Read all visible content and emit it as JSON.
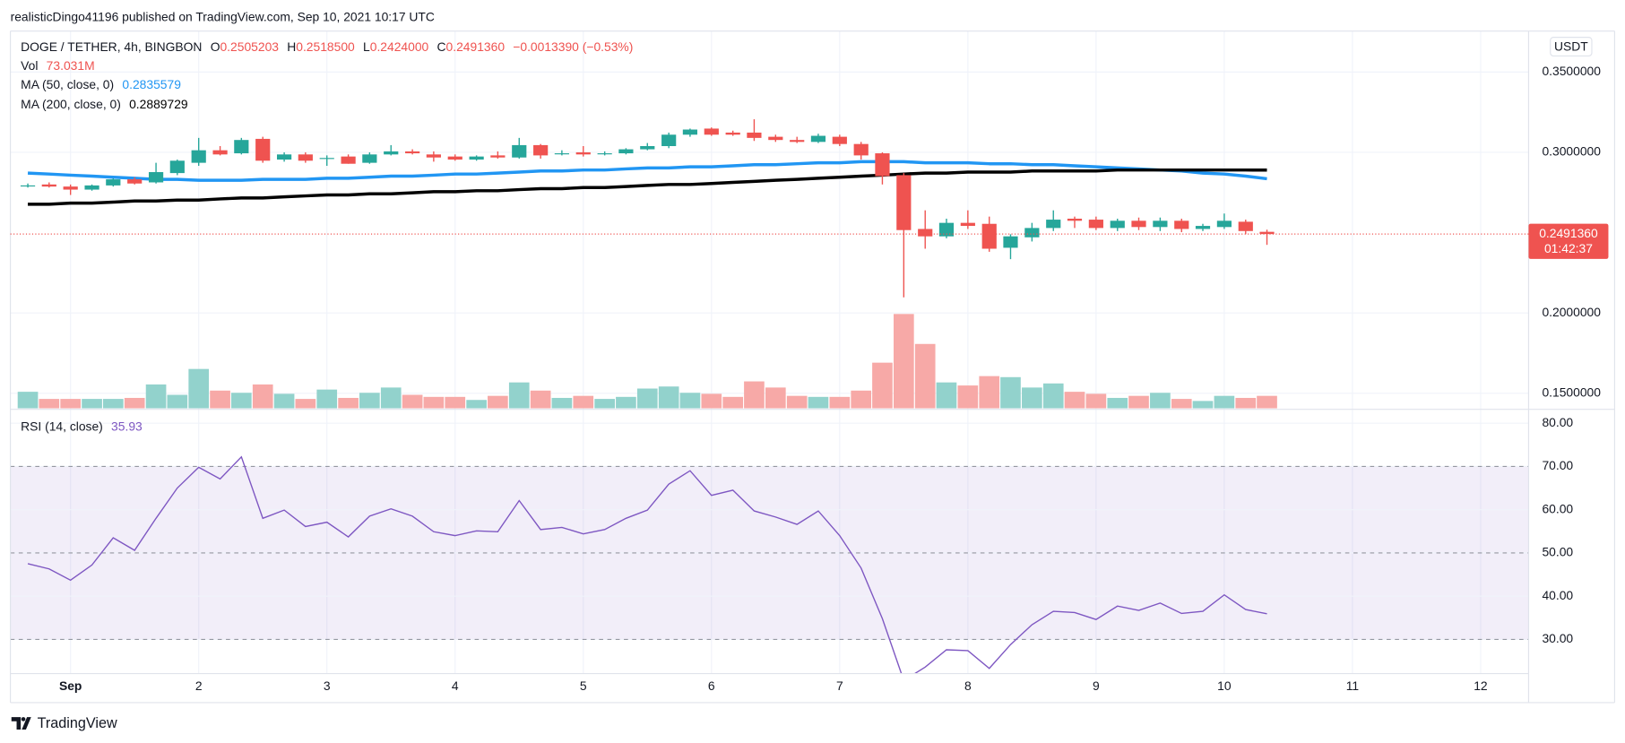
{
  "header": "realisticDingo41196 published on TradingView.com, Sep 10, 2021 10:17 UTC",
  "footer": "TradingView",
  "chart_data": [
    {
      "type": "candlestick",
      "title": "DOGE / TETHER, 4h, BINGBON",
      "currency": "USDT",
      "ohlc_legend": [
        {
          "key": "O",
          "value": "0.2505203"
        },
        {
          "key": "H",
          "value": "0.2518500"
        },
        {
          "key": "L",
          "value": "0.2424000"
        },
        {
          "key": "C",
          "value": "0.2491360"
        }
      ],
      "change": "−0.0013390 (−0.53%)",
      "up_color": "#26a69a",
      "down_color": "#ef5350",
      "last_label": "0.2491360",
      "countdown": "01:42:37",
      "xlim": [
        0.531,
        12.374
      ],
      "xticks": [
        {
          "value": 1,
          "label": "Sep"
        },
        2,
        3,
        4,
        5,
        6,
        7,
        8,
        9,
        10,
        11,
        12
      ],
      "ylim": [
        0.14,
        0.3755
      ],
      "yticks": [
        {
          "value": 0.35,
          "label": "0.3500000"
        },
        {
          "value": 0.3,
          "label": "0.3000000"
        },
        {
          "value": 0.2,
          "label": "0.2000000"
        },
        {
          "value": 0.15,
          "label": "0.1500000"
        }
      ],
      "grid": true,
      "x": [
        0.667,
        0.833,
        1,
        1.167,
        1.333,
        1.5,
        1.667,
        1.833,
        2,
        2.167,
        2.333,
        2.5,
        2.667,
        2.833,
        3,
        3.167,
        3.333,
        3.5,
        3.667,
        3.833,
        4,
        4.167,
        4.333,
        4.5,
        4.667,
        4.833,
        5,
        5.167,
        5.333,
        5.5,
        5.667,
        5.833,
        6,
        6.167,
        6.333,
        6.5,
        6.667,
        6.833,
        7,
        7.167,
        7.333,
        7.5,
        7.667,
        7.833,
        8,
        8.167,
        8.333,
        8.5,
        8.667,
        8.833,
        9,
        9.167,
        9.333,
        9.5,
        9.667,
        9.833,
        10,
        10.167,
        10.333
      ],
      "open": [
        0.279,
        0.28,
        0.2787,
        0.2768,
        0.2794,
        0.2832,
        0.2813,
        0.2871,
        0.2935,
        0.3013,
        0.2994,
        0.3084,
        0.2955,
        0.2987,
        0.2961,
        0.2974,
        0.2935,
        0.2987,
        0.3006,
        0.2987,
        0.2974,
        0.2955,
        0.2981,
        0.2968,
        0.3045,
        0.299,
        0.3,
        0.299,
        0.2994,
        0.3019,
        0.3039,
        0.311,
        0.3148,
        0.3123,
        0.3123,
        0.3097,
        0.3077,
        0.3065,
        0.3097,
        0.3052,
        0.2994,
        0.2858,
        0.2523,
        0.2477,
        0.2561,
        0.2555,
        0.2406,
        0.2471,
        0.2529,
        0.2587,
        0.2581,
        0.2529,
        0.2574,
        0.2535,
        0.2574,
        0.2523,
        0.2535,
        0.2568,
        0.2505203
      ],
      "high": [
        0.2806,
        0.2813,
        0.28,
        0.28,
        0.2838,
        0.2845,
        0.2935,
        0.2955,
        0.309,
        0.3039,
        0.309,
        0.3097,
        0.3,
        0.3,
        0.2981,
        0.2987,
        0.3,
        0.3045,
        0.3019,
        0.3006,
        0.2987,
        0.2981,
        0.3006,
        0.309,
        0.3052,
        0.3013,
        0.3039,
        0.3006,
        0.3026,
        0.3058,
        0.3123,
        0.3148,
        0.3155,
        0.3135,
        0.3206,
        0.311,
        0.3097,
        0.3116,
        0.311,
        0.3065,
        0.3,
        0.2871,
        0.2639,
        0.2587,
        0.2639,
        0.26,
        0.249,
        0.2561,
        0.2639,
        0.26,
        0.26,
        0.2587,
        0.2594,
        0.2594,
        0.2587,
        0.2555,
        0.2619,
        0.2581,
        0.25185
      ],
      "low": [
        0.2781,
        0.2781,
        0.2735,
        0.2761,
        0.2787,
        0.28,
        0.2806,
        0.2858,
        0.2916,
        0.2981,
        0.2987,
        0.2935,
        0.2942,
        0.2935,
        0.2916,
        0.2929,
        0.2929,
        0.2981,
        0.2987,
        0.2942,
        0.2948,
        0.2948,
        0.2961,
        0.2961,
        0.2961,
        0.2981,
        0.2974,
        0.2981,
        0.2987,
        0.3013,
        0.3026,
        0.3097,
        0.3103,
        0.3103,
        0.3071,
        0.3065,
        0.3058,
        0.3058,
        0.3039,
        0.2955,
        0.28,
        0.2097,
        0.24,
        0.2465,
        0.2523,
        0.2381,
        0.2335,
        0.2445,
        0.251,
        0.2529,
        0.2516,
        0.251,
        0.2516,
        0.251,
        0.2503,
        0.251,
        0.2523,
        0.249,
        0.2424
      ],
      "close": [
        0.2794,
        0.2787,
        0.2768,
        0.2794,
        0.2832,
        0.2806,
        0.2877,
        0.2948,
        0.3013,
        0.2987,
        0.3077,
        0.2948,
        0.2987,
        0.2948,
        0.2965,
        0.2929,
        0.2987,
        0.3006,
        0.2994,
        0.2968,
        0.2955,
        0.2974,
        0.2968,
        0.3045,
        0.2981,
        0.2994,
        0.2987,
        0.2994,
        0.3019,
        0.3039,
        0.311,
        0.3142,
        0.311,
        0.311,
        0.309,
        0.3077,
        0.3065,
        0.3103,
        0.3052,
        0.2981,
        0.2852,
        0.2516,
        0.2477,
        0.2561,
        0.2542,
        0.24,
        0.2477,
        0.2529,
        0.2581,
        0.2574,
        0.2529,
        0.2574,
        0.2535,
        0.2574,
        0.2523,
        0.2542,
        0.2574,
        0.251,
        0.249136
      ],
      "series": [
        {
          "name": "MA (50, close, 0)",
          "color": "#2196f3",
          "last_label": "0.2835579",
          "values": [
            0.2871,
            0.2865,
            0.2858,
            0.2852,
            0.2845,
            0.2839,
            0.2832,
            0.2832,
            0.2826,
            0.2826,
            0.2826,
            0.2832,
            0.2832,
            0.2832,
            0.2839,
            0.2839,
            0.2845,
            0.2852,
            0.2852,
            0.2858,
            0.2865,
            0.2865,
            0.2871,
            0.2877,
            0.2884,
            0.2884,
            0.289,
            0.289,
            0.2897,
            0.2903,
            0.2903,
            0.291,
            0.291,
            0.2916,
            0.2923,
            0.2923,
            0.2929,
            0.2935,
            0.2935,
            0.2942,
            0.2942,
            0.2942,
            0.2935,
            0.2935,
            0.2935,
            0.2929,
            0.2929,
            0.2923,
            0.2923,
            0.2916,
            0.291,
            0.2903,
            0.2897,
            0.289,
            0.2884,
            0.2871,
            0.2865,
            0.2852,
            0.2835579
          ]
        },
        {
          "name": "MA (200, close, 0)",
          "color": "#000000",
          "last_label": "0.2889729",
          "values": [
            0.2677,
            0.2677,
            0.2684,
            0.2684,
            0.269,
            0.2697,
            0.2697,
            0.2703,
            0.2703,
            0.271,
            0.2716,
            0.2716,
            0.2723,
            0.2729,
            0.2735,
            0.2735,
            0.2742,
            0.2742,
            0.2748,
            0.2755,
            0.2755,
            0.2761,
            0.2761,
            0.2768,
            0.2774,
            0.2774,
            0.2781,
            0.2781,
            0.2787,
            0.2794,
            0.28,
            0.28,
            0.2806,
            0.2813,
            0.2819,
            0.2826,
            0.2832,
            0.2839,
            0.2845,
            0.2852,
            0.2858,
            0.2865,
            0.2871,
            0.2871,
            0.2877,
            0.2877,
            0.2877,
            0.2884,
            0.2884,
            0.2884,
            0.2884,
            0.289,
            0.289,
            0.289,
            0.289,
            0.289,
            0.289,
            0.289,
            0.2889729
          ]
        }
      ]
    },
    {
      "type": "bar",
      "name": "Vol",
      "last_label": "73.031M",
      "up_color": "#92d2cc",
      "down_color": "#f7a9a7",
      "values": [
        97,
        55,
        55,
        55,
        55,
        61,
        140,
        79,
        231,
        104,
        91,
        140,
        85,
        55,
        110,
        61,
        91,
        122,
        79,
        67,
        67,
        49,
        73,
        152,
        104,
        61,
        73,
        55,
        67,
        116,
        128,
        91,
        85,
        67,
        158,
        122,
        73,
        67,
        67,
        104,
        268,
        554,
        378,
        152,
        134,
        189,
        183,
        122,
        146,
        97,
        85,
        61,
        73,
        91,
        55,
        43,
        73,
        61,
        73.031
      ]
    },
    {
      "type": "line",
      "name": "RSI (14, close)",
      "last_label": "35.93",
      "color": "#7e57c2",
      "band_color": "rgba(126,87,194,0.1)",
      "levels": [
        30,
        50,
        70
      ],
      "ylim": [
        22.1,
        83.2
      ],
      "yticks": [
        {
          "value": 80,
          "label": "80.00"
        },
        {
          "value": 70,
          "label": "70.00"
        },
        {
          "value": 60,
          "label": "60.00"
        },
        {
          "value": 50,
          "label": "50.00"
        },
        {
          "value": 40,
          "label": "40.00"
        },
        {
          "value": 30,
          "label": "30.00"
        }
      ],
      "values": [
        47.5,
        46.3,
        43.7,
        47.2,
        53.5,
        50.6,
        58.0,
        65.0,
        69.8,
        67.1,
        72.2,
        58.0,
        59.9,
        56.1,
        57.1,
        53.7,
        58.5,
        60.2,
        58.5,
        54.9,
        54.0,
        55.1,
        54.9,
        62.1,
        55.4,
        55.9,
        54.4,
        55.4,
        58.0,
        59.9,
        65.9,
        69.0,
        63.3,
        64.5,
        59.7,
        58.3,
        56.6,
        59.7,
        54.0,
        46.5,
        34.8,
        20.5,
        23.6,
        27.6,
        27.4,
        23.3,
        28.8,
        33.4,
        36.5,
        36.2,
        34.6,
        37.7,
        36.7,
        38.4,
        36.0,
        36.5,
        40.3,
        36.9,
        35.93
      ]
    }
  ]
}
